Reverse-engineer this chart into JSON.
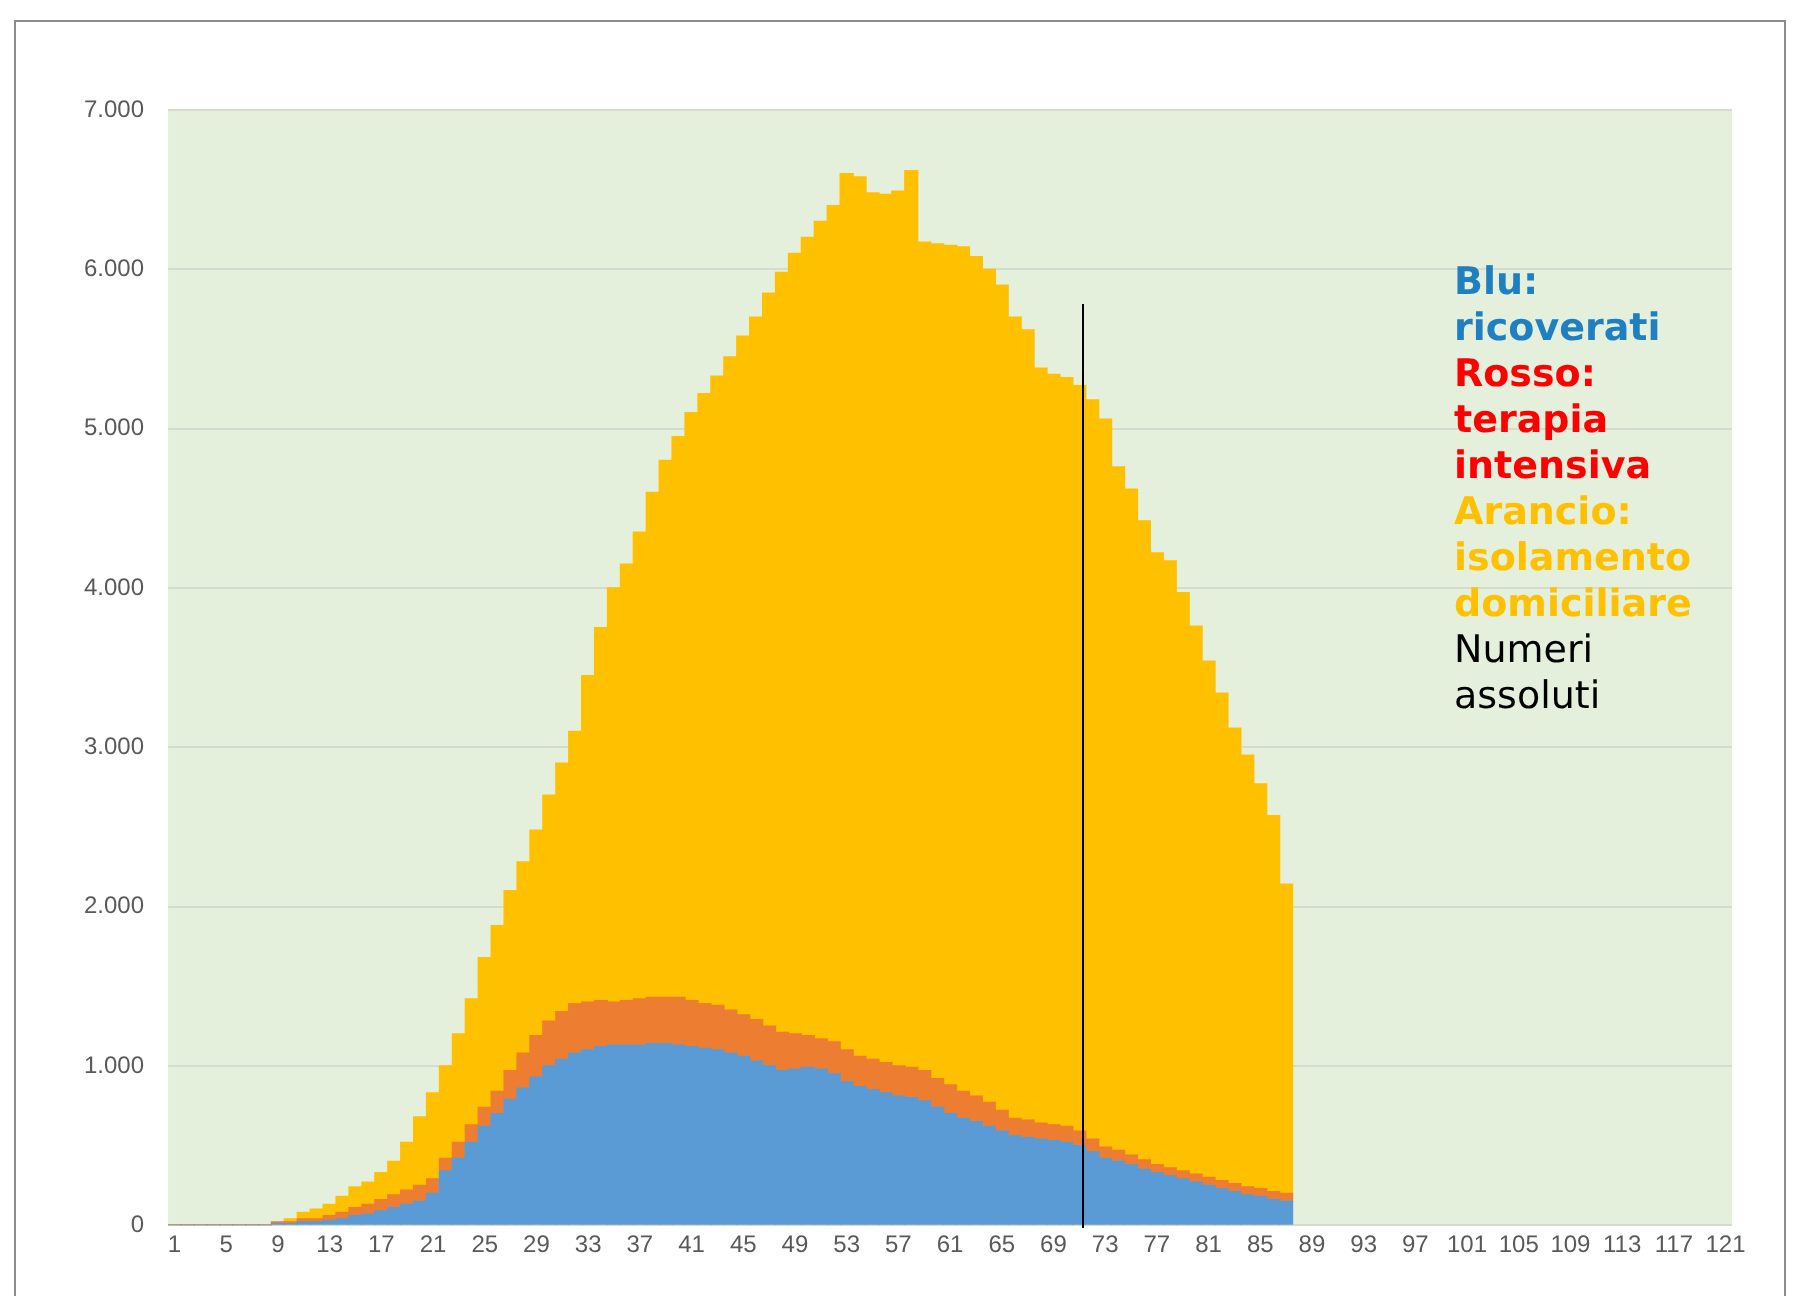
{
  "chart_data": {
    "type": "bar",
    "stacked": true,
    "categories": [
      "1",
      null,
      null,
      null,
      "5",
      null,
      null,
      null,
      "9",
      null,
      null,
      null,
      "13",
      null,
      null,
      null,
      "17",
      null,
      null,
      null,
      "21",
      null,
      null,
      null,
      "25",
      null,
      null,
      null,
      "29",
      null,
      null,
      null,
      "33",
      null,
      null,
      null,
      "37",
      null,
      null,
      null,
      "41",
      null,
      null,
      null,
      "45",
      null,
      null,
      null,
      "49",
      null,
      null,
      null,
      "53",
      null,
      null,
      null,
      "57",
      null,
      null,
      null,
      "61",
      null,
      null,
      null,
      "65",
      null,
      null,
      null,
      "69",
      null,
      null,
      null,
      "73",
      null,
      null,
      null,
      "77",
      null,
      null,
      null,
      "81",
      null,
      null,
      null,
      "85",
      null,
      null,
      null,
      "89",
      null,
      null,
      null,
      "93",
      null,
      null,
      null,
      "97",
      null,
      null,
      null,
      "101",
      null,
      null,
      null,
      "105",
      null,
      null,
      null,
      "109",
      null,
      null,
      null,
      "113",
      null,
      null,
      null,
      "117",
      null,
      null,
      null,
      "121"
    ],
    "series": [
      {
        "color": "#5b9bd5",
        "values": [
          0,
          0,
          0,
          0,
          0,
          0,
          0,
          0,
          10,
          10,
          20,
          20,
          30,
          40,
          60,
          70,
          90,
          110,
          130,
          150,
          200,
          340,
          420,
          520,
          620,
          700,
          790,
          860,
          930,
          1000,
          1040,
          1080,
          1100,
          1120,
          1130,
          1130,
          1130,
          1140,
          1140,
          1130,
          1120,
          1110,
          1100,
          1080,
          1060,
          1030,
          1000,
          970,
          980,
          990,
          980,
          950,
          900,
          870,
          850,
          830,
          810,
          800,
          780,
          740,
          700,
          670,
          650,
          620,
          590,
          560,
          550,
          540,
          530,
          520,
          500,
          460,
          420,
          400,
          380,
          350,
          330,
          310,
          290,
          270,
          250,
          230,
          210,
          190,
          180,
          160,
          150,
          null,
          null,
          null,
          null,
          null,
          null,
          null,
          null,
          null,
          null,
          null,
          null,
          null,
          null,
          null,
          null,
          null,
          null,
          null,
          null,
          null,
          null,
          null,
          null,
          null,
          null,
          null,
          null,
          null,
          null,
          null,
          null,
          null,
          null
        ]
      },
      {
        "color": "#ed7d31",
        "values": [
          0,
          0,
          0,
          0,
          0,
          0,
          0,
          0,
          10,
          10,
          20,
          20,
          30,
          40,
          50,
          60,
          70,
          80,
          90,
          100,
          90,
          80,
          100,
          110,
          120,
          140,
          180,
          220,
          260,
          280,
          300,
          310,
          300,
          290,
          270,
          280,
          290,
          290,
          290,
          300,
          290,
          280,
          280,
          270,
          260,
          260,
          250,
          240,
          220,
          200,
          190,
          200,
          200,
          190,
          190,
          190,
          190,
          190,
          190,
          180,
          180,
          170,
          160,
          150,
          130,
          110,
          110,
          100,
          100,
          100,
          90,
          80,
          70,
          70,
          60,
          60,
          50,
          50,
          50,
          50,
          50,
          50,
          50,
          50,
          50,
          50,
          50,
          null,
          null,
          null,
          null,
          null,
          null,
          null,
          null,
          null,
          null,
          null,
          null,
          null,
          null,
          null,
          null,
          null,
          null,
          null,
          null,
          null,
          null,
          null,
          null,
          null,
          null,
          null,
          null,
          null,
          null,
          null,
          null,
          null,
          null
        ]
      },
      {
        "color": "#ffc000",
        "values": [
          0,
          0,
          0,
          0,
          0,
          0,
          0,
          0,
          null,
          20,
          40,
          60,
          70,
          100,
          130,
          140,
          170,
          210,
          300,
          430,
          540,
          580,
          680,
          790,
          940,
          1040,
          1130,
          1200,
          1290,
          1420,
          1560,
          1710,
          2050,
          2340,
          2600,
          2740,
          2930,
          3170,
          3370,
          3520,
          3690,
          3830,
          3950,
          4100,
          4260,
          4410,
          4600,
          4770,
          4900,
          5010,
          5130,
          5250,
          5500,
          5520,
          5440,
          5450,
          5490,
          5630,
          5200,
          5240,
          5270,
          5300,
          5270,
          5230,
          5180,
          5030,
          4960,
          4740,
          4710,
          4700,
          4680,
          4640,
          4570,
          4290,
          4180,
          4010,
          3840,
          3810,
          3630,
          3440,
          3240,
          3060,
          2860,
          2710,
          2540,
          2360,
          1940,
          null,
          null,
          null,
          null,
          null,
          null,
          null,
          null,
          null,
          null,
          null,
          null,
          null,
          null,
          null,
          null,
          null,
          null,
          null,
          null,
          null,
          null,
          null,
          null,
          null,
          null,
          null,
          null,
          null,
          null,
          null,
          null,
          null,
          null
        ]
      }
    ],
    "ylim": [
      0,
      7000
    ],
    "yticks": [
      0,
      {
        "value": 1000,
        "label": "1.000"
      },
      {
        "value": 2000,
        "label": "2.000"
      },
      {
        "value": 3000,
        "label": "3.000"
      },
      {
        "value": 4000,
        "label": "4.000"
      },
      {
        "value": 5000,
        "label": "5.000"
      },
      {
        "value": 6000,
        "label": "6.000"
      },
      {
        "value": 7000,
        "label": "7.000"
      }
    ],
    "grid": "y",
    "legend": false,
    "annotations": [
      "Blu: ricoverati",
      "Rosso: terapia intensiva",
      "Arancio: isolamento domiciliare",
      "Numeri assoluti"
    ]
  }
}
